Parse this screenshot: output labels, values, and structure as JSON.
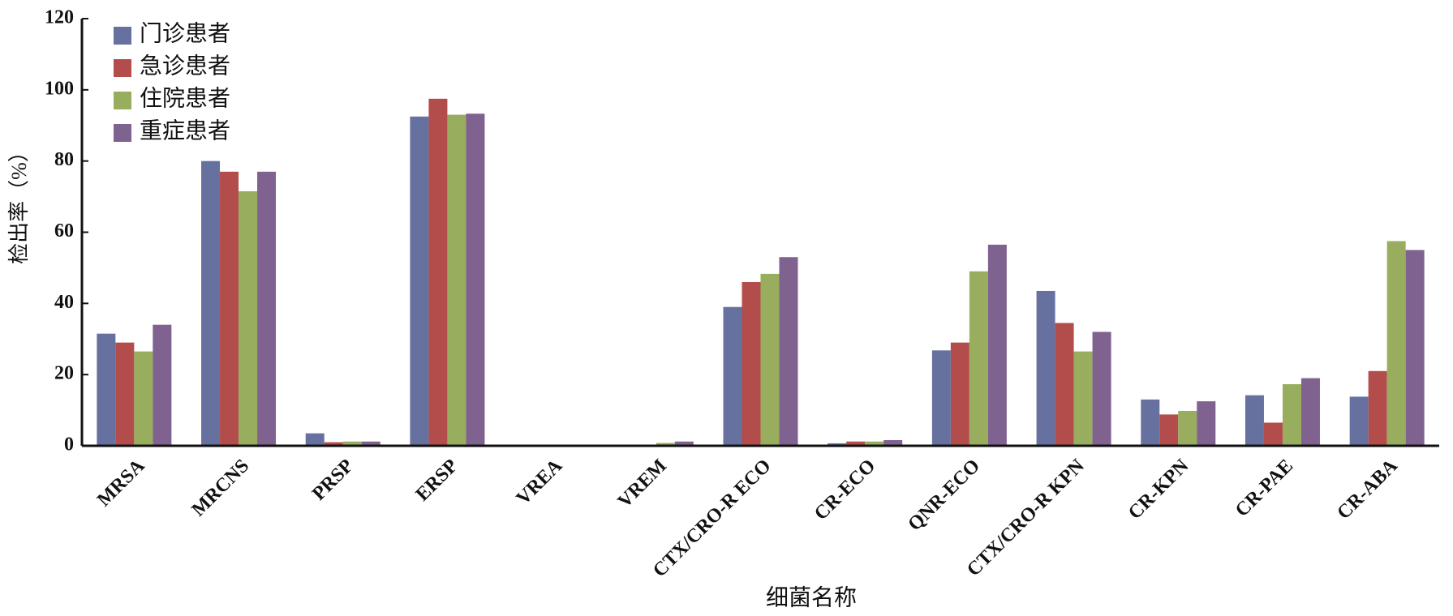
{
  "chart_data": {
    "type": "bar",
    "x_label": "细菌名称",
    "y_label": "检出率（%）",
    "categories": [
      "MRSA",
      "MRCNS",
      "PRSP",
      "ERSP",
      "VREA",
      "VREM",
      "CTX/CRO-R ECO",
      "CR-ECO",
      "QNR-ECO",
      "CTX/CRO-R KPN",
      "CR-KPN",
      "CR-PAE",
      "CR-ABA"
    ],
    "series": [
      {
        "name": "门诊患者",
        "color": "#66719f",
        "values": [
          31.5,
          80,
          3.5,
          92.5,
          0,
          0,
          39,
          0.7,
          26.8,
          43.5,
          13,
          14.2,
          13.8
        ]
      },
      {
        "name": "急诊患者",
        "color": "#b24d4b",
        "values": [
          29,
          77,
          1,
          97.5,
          0,
          0.3,
          46,
          1.2,
          29,
          34.5,
          8.8,
          6.5,
          21
        ]
      },
      {
        "name": "住院患者",
        "color": "#98ad5e",
        "values": [
          26.5,
          71.5,
          1.2,
          93,
          0,
          0.8,
          48.3,
          1.2,
          49,
          26.5,
          9.8,
          17.3,
          57.5
        ]
      },
      {
        "name": "重症患者",
        "color": "#7f6290",
        "values": [
          34,
          77,
          1.2,
          93.3,
          0,
          1.2,
          53,
          1.6,
          56.5,
          32,
          12.5,
          19,
          55
        ]
      }
    ],
    "ylim": [
      0,
      120
    ],
    "yticks": [
      0,
      20,
      40,
      60,
      80,
      100,
      120
    ],
    "grid": false,
    "legend": "top-left"
  }
}
